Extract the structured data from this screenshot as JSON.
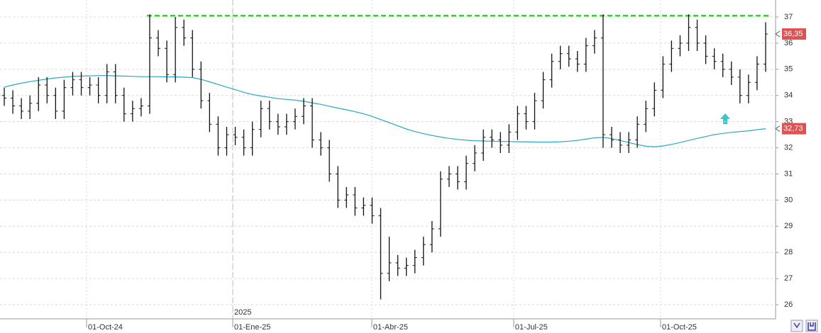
{
  "chart_data": {
    "type": "ohlc",
    "open": [
      34.0,
      33.9,
      33.6,
      33.4,
      33.7,
      34.4,
      34.0,
      33.4,
      34.3,
      34.6,
      34.3,
      34.4,
      34.0,
      34.9,
      34.0,
      33.3,
      33.5,
      33.6,
      36.2,
      35.8,
      34.8,
      36.6,
      36.2,
      35.0,
      33.8,
      32.9,
      32.0,
      32.5,
      32.4,
      32.0,
      32.7,
      33.5,
      33.0,
      32.8,
      33.0,
      33.2,
      33.6,
      32.3,
      32.0,
      31.0,
      30.0,
      30.2,
      29.7,
      29.8,
      29.4,
      27.2,
      27.6,
      27.4,
      27.5,
      27.8,
      28.3,
      28.9,
      30.8,
      31.0,
      30.7,
      31.4,
      31.8,
      32.4,
      32.3,
      32.1,
      32.6,
      33.3,
      33.0,
      33.8,
      34.6,
      35.3,
      35.6,
      35.4,
      35.2,
      35.9,
      36.2,
      32.5,
      32.3,
      32.1,
      32.3,
      32.9,
      33.5,
      34.2,
      35.2,
      35.8,
      36.0,
      36.6,
      36.0,
      35.5,
      35.3,
      35.0,
      34.7,
      34.0,
      34.5,
      35.2
    ],
    "high": [
      34.3,
      34.2,
      33.9,
      34.0,
      34.7,
      34.7,
      34.3,
      34.6,
      34.9,
      34.9,
      34.7,
      34.7,
      35.2,
      35.2,
      34.3,
      33.8,
      33.9,
      37.1,
      36.5,
      36.1,
      37.0,
      36.9,
      36.5,
      35.3,
      34.1,
      33.2,
      32.8,
      32.8,
      32.7,
      33.0,
      33.8,
      33.8,
      33.3,
      33.3,
      33.5,
      33.9,
      33.9,
      32.6,
      32.3,
      31.3,
      30.5,
      30.5,
      30.1,
      30.1,
      29.7,
      28.6,
      27.9,
      27.8,
      28.1,
      28.6,
      29.2,
      31.1,
      31.3,
      31.3,
      31.7,
      32.1,
      32.7,
      32.7,
      32.6,
      32.9,
      33.6,
      33.6,
      34.1,
      34.9,
      35.6,
      35.9,
      35.9,
      35.7,
      36.2,
      36.5,
      37.1,
      32.8,
      32.6,
      32.6,
      33.2,
      33.8,
      34.5,
      35.5,
      36.1,
      36.3,
      37.1,
      36.9,
      36.3,
      35.8,
      35.6,
      35.3,
      35.0,
      34.8,
      35.5,
      36.8
    ],
    "low": [
      33.6,
      33.3,
      33.1,
      33.1,
      33.4,
      33.7,
      33.1,
      33.1,
      34.0,
      34.0,
      34.0,
      33.7,
      33.7,
      33.7,
      33.0,
      33.0,
      33.2,
      33.3,
      35.5,
      34.5,
      34.5,
      35.9,
      34.7,
      33.5,
      32.6,
      31.7,
      31.7,
      32.1,
      31.7,
      31.7,
      32.4,
      32.7,
      32.5,
      32.5,
      32.7,
      32.9,
      32.0,
      31.7,
      30.7,
      29.7,
      29.7,
      29.4,
      29.4,
      29.1,
      26.2,
      26.9,
      27.1,
      27.1,
      27.2,
      27.5,
      28.0,
      28.6,
      30.5,
      30.4,
      30.4,
      31.1,
      31.5,
      32.0,
      31.8,
      31.8,
      32.3,
      32.7,
      32.7,
      33.5,
      34.3,
      35.0,
      35.1,
      34.9,
      34.9,
      35.6,
      32.0,
      32.0,
      31.8,
      31.8,
      32.0,
      32.6,
      33.2,
      33.9,
      34.9,
      35.5,
      35.7,
      35.7,
      35.2,
      35.0,
      34.7,
      34.4,
      33.7,
      33.7,
      34.2,
      34.9
    ],
    "close": [
      33.9,
      33.6,
      33.4,
      33.7,
      34.4,
      34.0,
      33.4,
      34.3,
      34.6,
      34.3,
      34.4,
      34.0,
      34.9,
      34.0,
      33.3,
      33.5,
      33.6,
      36.2,
      35.8,
      34.8,
      36.6,
      36.2,
      35.0,
      33.8,
      32.9,
      32.0,
      32.5,
      32.4,
      32.0,
      32.7,
      33.5,
      33.0,
      32.8,
      33.0,
      33.2,
      33.6,
      32.3,
      32.0,
      31.0,
      30.0,
      30.2,
      29.7,
      29.8,
      29.4,
      27.2,
      27.6,
      27.4,
      27.5,
      27.8,
      28.3,
      28.9,
      30.8,
      31.0,
      30.7,
      31.4,
      31.8,
      32.4,
      32.3,
      32.1,
      32.6,
      33.3,
      33.0,
      33.8,
      34.6,
      35.3,
      35.6,
      35.4,
      35.2,
      35.9,
      36.2,
      32.5,
      32.3,
      32.1,
      32.3,
      32.9,
      33.5,
      34.2,
      35.2,
      35.8,
      36.0,
      36.6,
      36.0,
      35.5,
      35.3,
      35.0,
      34.7,
      34.0,
      34.5,
      35.2,
      36.35
    ],
    "color": "#111111",
    "moving_average": {
      "color": "#2aa6c6",
      "values": [
        34.32,
        34.4,
        34.47,
        34.53,
        34.58,
        34.63,
        34.67,
        34.7,
        34.73,
        34.74,
        34.75,
        34.76,
        34.76,
        34.75,
        34.74,
        34.73,
        34.72,
        34.72,
        34.72,
        34.71,
        34.71,
        34.7,
        34.68,
        34.62,
        34.52,
        34.42,
        34.32,
        34.22,
        34.12,
        34.04,
        33.98,
        33.93,
        33.88,
        33.85,
        33.82,
        33.78,
        33.72,
        33.66,
        33.59,
        33.52,
        33.45,
        33.38,
        33.3,
        33.2,
        33.08,
        32.96,
        32.84,
        32.72,
        32.62,
        32.54,
        32.47,
        32.41,
        32.36,
        32.32,
        32.29,
        32.27,
        32.26,
        32.25,
        32.24,
        32.24,
        32.23,
        32.23,
        32.22,
        32.22,
        32.22,
        32.23,
        32.25,
        32.28,
        32.33,
        32.38,
        32.4,
        32.35,
        32.28,
        32.2,
        32.12,
        32.06,
        32.04,
        32.07,
        32.13,
        32.2,
        32.28,
        32.36,
        32.43,
        32.5,
        32.55,
        32.59,
        32.62,
        32.65,
        32.69,
        32.73
      ]
    },
    "resistance": {
      "value": 37.05,
      "start": 17,
      "color": "#22dd22"
    },
    "last_labels": [
      {
        "value": 36.35,
        "label": "36,35"
      },
      {
        "value": 32.73,
        "label": "32,73"
      }
    ],
    "last_label_color": "#e05252",
    "xlim": [
      -0.5,
      89.5
    ],
    "ylim": [
      25.46,
      37.65
    ],
    "yticks": [
      26,
      27,
      28,
      29,
      30,
      31,
      32,
      33,
      34,
      35,
      36,
      37
    ],
    "xticks": [
      {
        "value": 9.62,
        "label": "01-Oct-24"
      },
      {
        "value": 26.71,
        "label": "01-Ene-25"
      },
      {
        "value": 42.96,
        "label": "01-Abr-25"
      },
      {
        "value": 59.55,
        "label": "01-Jul-25"
      },
      {
        "value": 76.72,
        "label": "01-Oct-25"
      }
    ],
    "year_marker": {
      "value": 26.71,
      "label": "2025"
    },
    "grid": true
  }
}
